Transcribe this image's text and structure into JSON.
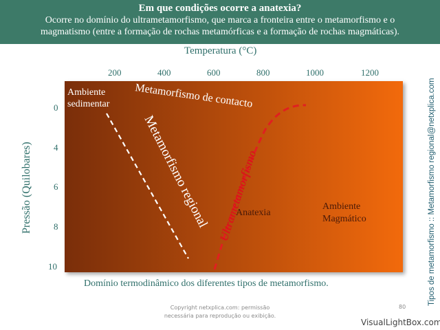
{
  "header": {
    "title": "Em que condições ocorre a anatexia?",
    "subtitle_line1": "Ocorre no domínio do ultrametamorfismo, que marca a fronteira entre o metamorfismo e o",
    "subtitle_line2": "magmatismo (entre a formação de rochas metamórficas e a formação de rochas magmáticas)."
  },
  "diagram": {
    "x_axis_title": "Temperatura (°C)",
    "y_axis_title": "Pressão (Quilobares)",
    "x_ticks": [
      "200",
      "400",
      "600",
      "800",
      "1000",
      "1200"
    ],
    "y_ticks": [
      "0",
      "4",
      "6",
      "8",
      "10"
    ],
    "caption": "Domínio termodinâmico dos diferentes tipos de metamorfismo.",
    "labels": {
      "sedimentar_1": "Ambiente",
      "sedimentar_2": "sedimentar",
      "contacto": "Metamorfismo de contacto",
      "regional": "Metamorfismo regional",
      "ultra": "Ultrametamorfismo",
      "anatexia": "Anatexia",
      "magmatico_1": "Ambiente",
      "magmatico_2": "Magmático"
    },
    "colors": {
      "gradient_start": "#7a2e0a",
      "gradient_end": "#f26a0c",
      "dashed_white": "#ffffff",
      "dashed_red": "#e02020"
    }
  },
  "side_text": "Tipos de metamorfismo :: Metamorfismo regional@netxplica.com",
  "footer": {
    "copyright_1": "Copyright netxplica.com: permissão",
    "copyright_2": "necessária para reprodução ou exibição.",
    "page": "80",
    "watermark": "VisualLightBox.com"
  }
}
